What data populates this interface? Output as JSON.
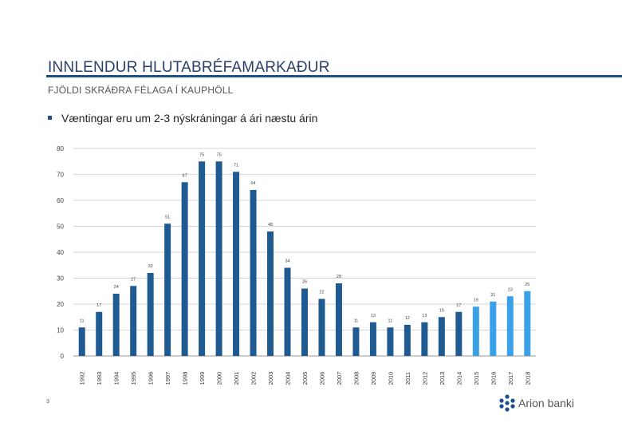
{
  "slide": {
    "title": "INNLENDUR HLUTABRÉFAMARKAÐUR",
    "subtitle": "FJÖLDI SKRÁÐRA FÉLAGA Í KAUPHÖLL",
    "bullet": "Væntingar eru um 2-3 nýskráningar á ári næstu árin",
    "page_number": "3",
    "logo_text": "Arion banki"
  },
  "colors": {
    "actual": "#1f5a91",
    "forecast": "#3aa0e8",
    "accent": "#1f4e8c"
  },
  "chart_data": {
    "type": "bar",
    "title": "",
    "xlabel": "",
    "ylabel": "",
    "ylim": [
      0,
      80
    ],
    "yticks": [
      0,
      10,
      20,
      30,
      40,
      50,
      60,
      70,
      80
    ],
    "grid": true,
    "categories": [
      "1992",
      "1993",
      "1994",
      "1995",
      "1996",
      "1997",
      "1998",
      "1999",
      "2000",
      "2001",
      "2002",
      "2003",
      "2004",
      "2005",
      "2006",
      "2007",
      "2008",
      "2009",
      "2010",
      "2011",
      "2012",
      "2013",
      "2014",
      "2015",
      "2016",
      "2017",
      "2018"
    ],
    "values": [
      11,
      17,
      24,
      27,
      32,
      51,
      67,
      75,
      75,
      71,
      64,
      48,
      34,
      26,
      22,
      28,
      11,
      13,
      11,
      12,
      13,
      15,
      17,
      19,
      21,
      23,
      25
    ],
    "forecast_from": "2015"
  }
}
